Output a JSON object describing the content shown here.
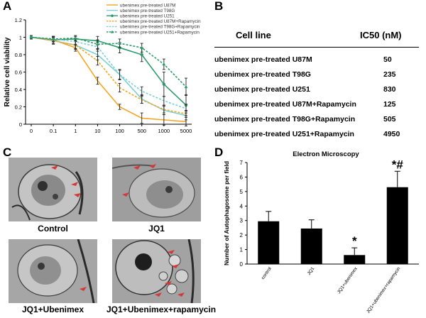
{
  "panels": {
    "A": "A",
    "B": "B",
    "C": "C",
    "D": "D"
  },
  "panel_a": {
    "chart_data": {
      "type": "line",
      "ylabel": "Relative cell viability",
      "xlabel": "",
      "categories": [
        "0",
        "0.1",
        "1",
        "10",
        "100",
        "500",
        "1000",
        "5000"
      ],
      "yticks": [
        "0",
        "0.2",
        "0.4",
        "0.6",
        "0.8",
        "1",
        "1.2"
      ],
      "ylim": [
        0,
        1.2
      ],
      "grid": false,
      "legend_position": "top-right",
      "series": [
        {
          "name": "ubenimex pre-treated U87M",
          "color": "#f5a623",
          "dash": "solid",
          "marker": "none",
          "values": [
            1.0,
            0.97,
            0.88,
            0.5,
            0.2,
            0.07,
            0.05,
            0.03
          ],
          "errors": [
            0.02,
            0.04,
            0.04,
            0.04,
            0.03,
            0.06,
            0.06,
            0.05
          ]
        },
        {
          "name": "ubenimex pre-treated T98G",
          "color": "#7ccfd6",
          "dash": "solid",
          "marker": "none",
          "values": [
            1.0,
            0.96,
            0.91,
            0.8,
            0.57,
            0.29,
            0.16,
            0.1
          ],
          "errors": [
            0.02,
            0.04,
            0.05,
            0.06,
            0.05,
            0.05,
            0.05,
            0.05
          ]
        },
        {
          "name": "ubenimex pre-treated U251",
          "color": "#2e9a6a",
          "dash": "solid",
          "marker": "circle",
          "values": [
            1.0,
            0.97,
            0.98,
            0.96,
            0.88,
            0.8,
            0.46,
            0.22
          ],
          "errors": [
            0.02,
            0.04,
            0.03,
            0.05,
            0.06,
            0.08,
            0.14,
            0.12
          ]
        },
        {
          "name": "ubenimex pre-treated U87M+Rapamycin",
          "color": "#f5a623",
          "dash": "dash",
          "marker": "none",
          "values": [
            1.0,
            0.96,
            0.91,
            0.73,
            0.42,
            0.28,
            0.17,
            0.12
          ],
          "errors": [
            0.02,
            0.03,
            0.04,
            0.05,
            0.05,
            0.04,
            0.04,
            0.04
          ]
        },
        {
          "name": "ubenimex pre-treated T98G+Rapamycin",
          "color": "#7ccfd6",
          "dash": "dash",
          "marker": "none",
          "values": [
            1.0,
            0.98,
            0.95,
            0.89,
            0.57,
            0.38,
            0.27,
            0.18
          ],
          "errors": [
            0.02,
            0.03,
            0.04,
            0.05,
            0.06,
            0.05,
            0.05,
            0.05
          ]
        },
        {
          "name": "ubenimex pre-treated U251+Rapamycin",
          "color": "#2e9a6a",
          "dash": "dash",
          "marker": "triangle",
          "values": [
            1.0,
            0.98,
            0.99,
            0.92,
            0.93,
            0.88,
            0.69,
            0.43
          ],
          "errors": [
            0.02,
            0.03,
            0.03,
            0.05,
            0.05,
            0.05,
            0.06,
            0.1
          ]
        }
      ]
    }
  },
  "panel_b": {
    "chart_data": {
      "type": "table",
      "columns": [
        "Cell line",
        "IC50 (nM)"
      ],
      "rows": [
        [
          "ubenimex pre-treated U87M",
          "50"
        ],
        [
          "ubenimex pre-treated T98G",
          "235"
        ],
        [
          "ubenimex pre-treated U251",
          "830"
        ],
        [
          "ubenimex pre-treated U87M+Rapamycin",
          "125"
        ],
        [
          "ubenimex pre-treated T98G+Rapamycin",
          "505"
        ],
        [
          "ubenimex pre-treated U251+Rapamycin",
          "4950"
        ]
      ]
    }
  },
  "panel_c": {
    "images": [
      {
        "label": "Control"
      },
      {
        "label": "JQ1"
      },
      {
        "label": "JQ1+Ubenimex"
      },
      {
        "label": "JQ1+Ubenimex+rapamycin"
      }
    ],
    "arrow_color": "#d23a3a"
  },
  "panel_d": {
    "chart_data": {
      "type": "bar",
      "title": "Electron  Microscopy",
      "ylabel": "Number of Autophagosome per field",
      "categories": [
        "control",
        "JQ1",
        "JQ1+ubenimex",
        "JQ1+ubenimex+rapamycin"
      ],
      "values": [
        2.95,
        2.45,
        0.62,
        5.3
      ],
      "errors": [
        0.68,
        0.6,
        0.5,
        1.1
      ],
      "annotations": [
        "",
        "",
        "*",
        "*#"
      ],
      "yticks": [
        "0",
        "1",
        "2",
        "3",
        "4",
        "5",
        "6",
        "7"
      ],
      "ylim": [
        0,
        7
      ],
      "bar_color": "#000000"
    }
  }
}
